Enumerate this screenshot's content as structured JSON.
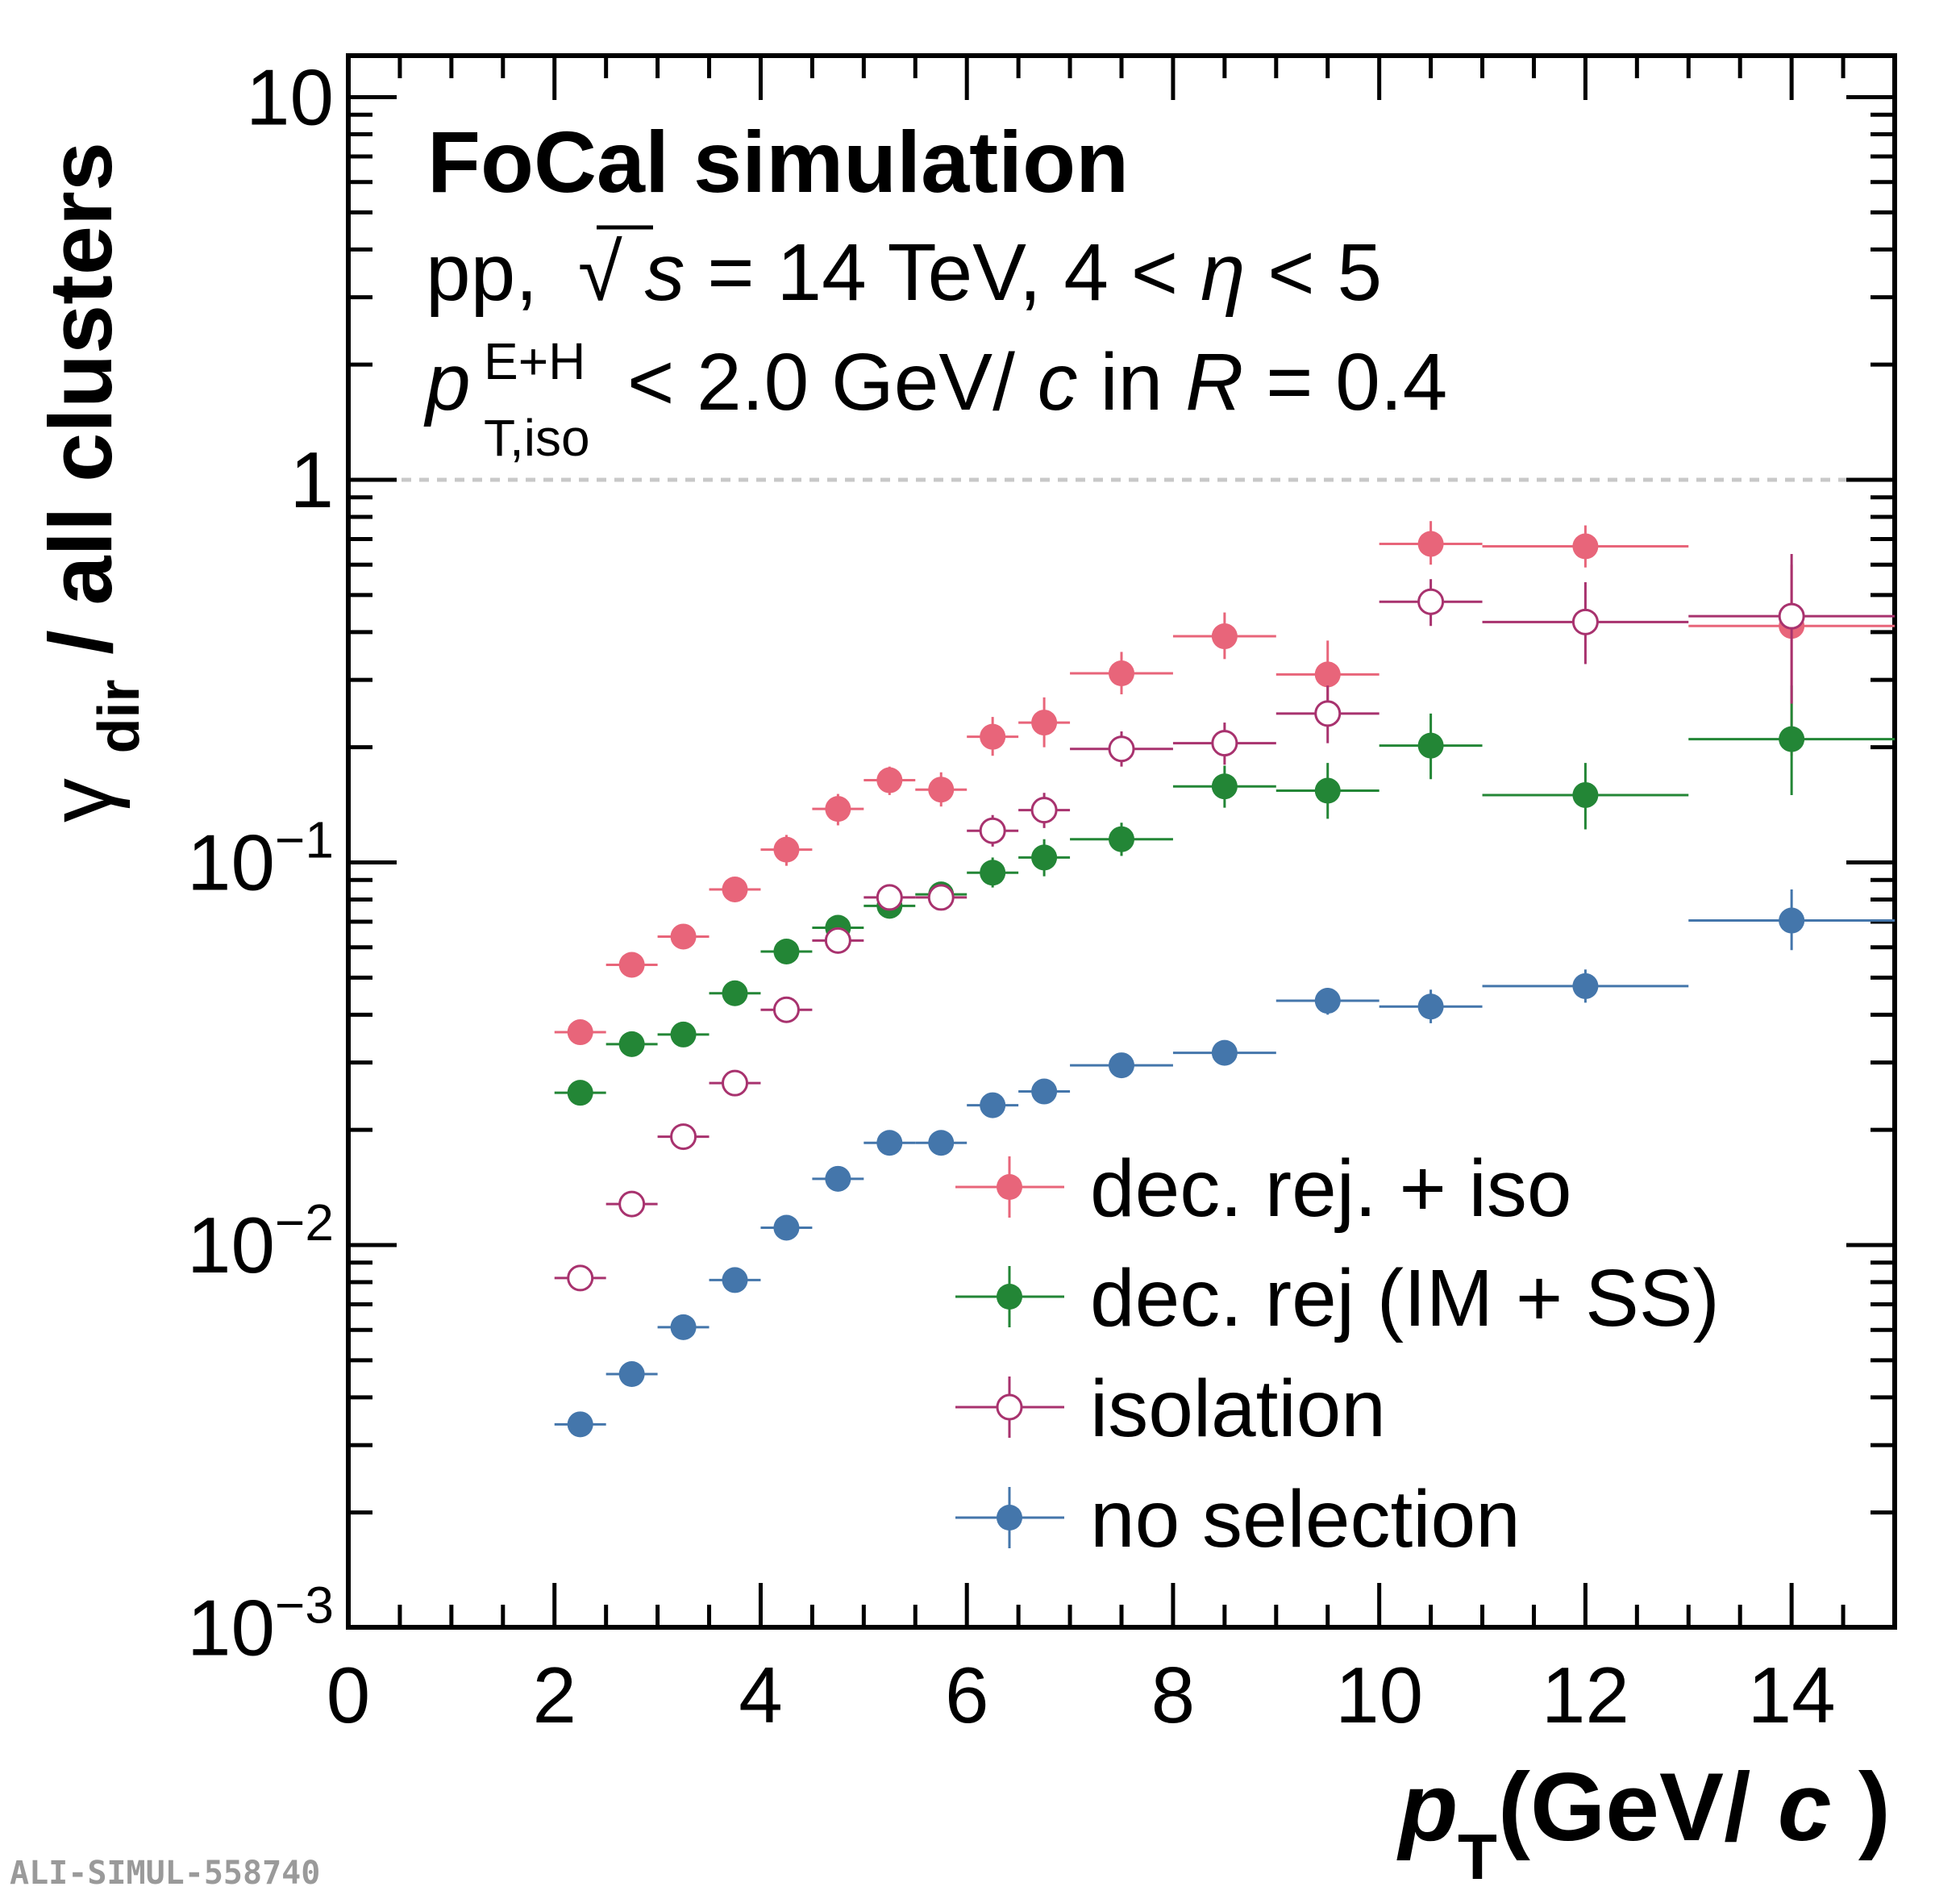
{
  "chart_data": {
    "type": "scatter",
    "title": "FoCal simulation",
    "annotations": {
      "line2_prefix": "pp,",
      "line2_sqrt": "√",
      "line2_s": "s",
      "line2_rest": " = 14 TeV, 4 < ",
      "line2_eta": "η",
      "line2_end": " < 5",
      "line3_p": "p",
      "line3_sup": "E+H",
      "line3_sub": "T,iso",
      "line3_mid": " < 2.0 GeV/",
      "line3_c": "c",
      "line3_in": " in ",
      "line3_R": "R",
      "line3_end": " = 0.4"
    },
    "xlabel": {
      "p": "p",
      "sub": "T",
      "open": " (GeV/",
      "c": "c",
      "close": ")"
    },
    "ylabel": {
      "gamma": "γ",
      "sub": "dir",
      "rest": " / all clusters"
    },
    "xlim": [
      0,
      15
    ],
    "ylim": [
      0.001,
      13
    ],
    "yscale": "log",
    "reference_line": 1,
    "x_ticks": [
      "0",
      "2",
      "4",
      "6",
      "8",
      "10",
      "12",
      "14"
    ],
    "y_ticks": [
      {
        "base": "10",
        "exp": ""
      },
      {
        "base": "1",
        "exp": ""
      },
      {
        "base": "10",
        "exp": "−1"
      },
      {
        "base": "10",
        "exp": "−2"
      },
      {
        "base": "10",
        "exp": "−3"
      }
    ],
    "series": [
      {
        "name": "dec. rej. + iso",
        "color": "#e8657a",
        "marker": "filled",
        "points": [
          {
            "x": 2.25,
            "xerr": 0.25,
            "y": 0.036,
            "ylo": 0.034,
            "yhi": 0.038
          },
          {
            "x": 2.75,
            "xerr": 0.25,
            "y": 0.054,
            "ylo": 0.051,
            "yhi": 0.057
          },
          {
            "x": 3.25,
            "xerr": 0.25,
            "y": 0.064,
            "ylo": 0.06,
            "yhi": 0.068
          },
          {
            "x": 3.75,
            "xerr": 0.25,
            "y": 0.085,
            "ylo": 0.08,
            "yhi": 0.09
          },
          {
            "x": 4.25,
            "xerr": 0.25,
            "y": 0.108,
            "ylo": 0.098,
            "yhi": 0.118
          },
          {
            "x": 4.75,
            "xerr": 0.25,
            "y": 0.138,
            "ylo": 0.125,
            "yhi": 0.151
          },
          {
            "x": 5.25,
            "xerr": 0.25,
            "y": 0.164,
            "ylo": 0.15,
            "yhi": 0.178
          },
          {
            "x": 5.75,
            "xerr": 0.25,
            "y": 0.155,
            "ylo": 0.14,
            "yhi": 0.172
          },
          {
            "x": 6.25,
            "xerr": 0.25,
            "y": 0.213,
            "ylo": 0.19,
            "yhi": 0.24
          },
          {
            "x": 6.75,
            "xerr": 0.25,
            "y": 0.232,
            "ylo": 0.2,
            "yhi": 0.27
          },
          {
            "x": 7.5,
            "xerr": 0.5,
            "y": 0.312,
            "ylo": 0.275,
            "yhi": 0.355
          },
          {
            "x": 8.5,
            "xerr": 0.5,
            "y": 0.39,
            "ylo": 0.34,
            "yhi": 0.45
          },
          {
            "x": 9.5,
            "xerr": 0.5,
            "y": 0.31,
            "ylo": 0.25,
            "yhi": 0.38
          },
          {
            "x": 10.5,
            "xerr": 0.5,
            "y": 0.68,
            "ylo": 0.6,
            "yhi": 0.78
          },
          {
            "x": 12,
            "xerr": 1,
            "y": 0.67,
            "ylo": 0.59,
            "yhi": 0.76
          },
          {
            "x": 14,
            "xerr": 1,
            "y": 0.415,
            "ylo": 0.19,
            "yhi": 0.6
          }
        ]
      },
      {
        "name": "dec. rej (IM + SS)",
        "color": "#238636",
        "marker": "filled",
        "points": [
          {
            "x": 2.25,
            "xerr": 0.25,
            "y": 0.025,
            "ylo": 0.0237,
            "yhi": 0.0263
          },
          {
            "x": 2.75,
            "xerr": 0.25,
            "y": 0.0335,
            "ylo": 0.0318,
            "yhi": 0.0352
          },
          {
            "x": 3.25,
            "xerr": 0.25,
            "y": 0.0355,
            "ylo": 0.0337,
            "yhi": 0.0373
          },
          {
            "x": 3.75,
            "xerr": 0.25,
            "y": 0.0455,
            "ylo": 0.043,
            "yhi": 0.048
          },
          {
            "x": 4.25,
            "xerr": 0.25,
            "y": 0.0585,
            "ylo": 0.055,
            "yhi": 0.062
          },
          {
            "x": 4.75,
            "xerr": 0.25,
            "y": 0.0675,
            "ylo": 0.063,
            "yhi": 0.072
          },
          {
            "x": 5.25,
            "xerr": 0.25,
            "y": 0.077,
            "ylo": 0.072,
            "yhi": 0.082
          },
          {
            "x": 5.75,
            "xerr": 0.25,
            "y": 0.0825,
            "ylo": 0.077,
            "yhi": 0.088
          },
          {
            "x": 6.25,
            "xerr": 0.25,
            "y": 0.094,
            "ylo": 0.086,
            "yhi": 0.103
          },
          {
            "x": 6.75,
            "xerr": 0.25,
            "y": 0.103,
            "ylo": 0.092,
            "yhi": 0.115
          },
          {
            "x": 7.5,
            "xerr": 0.5,
            "y": 0.115,
            "ylo": 0.104,
            "yhi": 0.127
          },
          {
            "x": 8.5,
            "xerr": 0.5,
            "y": 0.158,
            "ylo": 0.139,
            "yhi": 0.179
          },
          {
            "x": 9.5,
            "xerr": 0.5,
            "y": 0.154,
            "ylo": 0.13,
            "yhi": 0.182
          },
          {
            "x": 10.5,
            "xerr": 0.5,
            "y": 0.202,
            "ylo": 0.165,
            "yhi": 0.245
          },
          {
            "x": 12,
            "xerr": 1,
            "y": 0.15,
            "ylo": 0.122,
            "yhi": 0.182
          },
          {
            "x": 14,
            "xerr": 1,
            "y": 0.21,
            "ylo": 0.15,
            "yhi": 0.29
          }
        ]
      },
      {
        "name": "isolation",
        "color": "#a8326e",
        "marker": "open",
        "points": [
          {
            "x": 2.25,
            "xerr": 0.25,
            "y": 0.0082,
            "ylo": 0.0076,
            "yhi": 0.0088
          },
          {
            "x": 2.75,
            "xerr": 0.25,
            "y": 0.0128,
            "ylo": 0.012,
            "yhi": 0.0136
          },
          {
            "x": 3.25,
            "xerr": 0.25,
            "y": 0.0192,
            "ylo": 0.0181,
            "yhi": 0.0203
          },
          {
            "x": 3.75,
            "xerr": 0.25,
            "y": 0.0265,
            "ylo": 0.025,
            "yhi": 0.028
          },
          {
            "x": 4.25,
            "xerr": 0.25,
            "y": 0.0412,
            "ylo": 0.039,
            "yhi": 0.0435
          },
          {
            "x": 4.75,
            "xerr": 0.25,
            "y": 0.0625,
            "ylo": 0.059,
            "yhi": 0.066
          },
          {
            "x": 5.25,
            "xerr": 0.25,
            "y": 0.081,
            "ylo": 0.0765,
            "yhi": 0.0855
          },
          {
            "x": 5.75,
            "xerr": 0.25,
            "y": 0.081,
            "ylo": 0.076,
            "yhi": 0.086
          },
          {
            "x": 6.25,
            "xerr": 0.25,
            "y": 0.121,
            "ylo": 0.11,
            "yhi": 0.133
          },
          {
            "x": 6.75,
            "xerr": 0.25,
            "y": 0.137,
            "ylo": 0.123,
            "yhi": 0.152
          },
          {
            "x": 7.5,
            "xerr": 0.5,
            "y": 0.198,
            "ylo": 0.178,
            "yhi": 0.22
          },
          {
            "x": 8.5,
            "xerr": 0.5,
            "y": 0.205,
            "ylo": 0.18,
            "yhi": 0.232
          },
          {
            "x": 9.5,
            "xerr": 0.5,
            "y": 0.245,
            "ylo": 0.205,
            "yhi": 0.29
          },
          {
            "x": 10.5,
            "xerr": 0.5,
            "y": 0.48,
            "ylo": 0.415,
            "yhi": 0.55
          },
          {
            "x": 12,
            "xerr": 1,
            "y": 0.425,
            "ylo": 0.33,
            "yhi": 0.54
          },
          {
            "x": 14,
            "xerr": 1,
            "y": 0.44,
            "ylo": 0.26,
            "yhi": 0.64
          }
        ]
      },
      {
        "name": "no selection",
        "color": "#4476ab",
        "marker": "filled",
        "points": [
          {
            "x": 2.25,
            "xerr": 0.25,
            "y": 0.0034,
            "ylo": 0.0033,
            "yhi": 0.0035
          },
          {
            "x": 2.75,
            "xerr": 0.25,
            "y": 0.0046,
            "ylo": 0.0045,
            "yhi": 0.0047
          },
          {
            "x": 3.25,
            "xerr": 0.25,
            "y": 0.0061,
            "ylo": 0.0059,
            "yhi": 0.0063
          },
          {
            "x": 3.75,
            "xerr": 0.25,
            "y": 0.0081,
            "ylo": 0.0079,
            "yhi": 0.0083
          },
          {
            "x": 4.25,
            "xerr": 0.25,
            "y": 0.0111,
            "ylo": 0.0108,
            "yhi": 0.0114
          },
          {
            "x": 4.75,
            "xerr": 0.25,
            "y": 0.0149,
            "ylo": 0.0145,
            "yhi": 0.0153
          },
          {
            "x": 5.25,
            "xerr": 0.25,
            "y": 0.0185,
            "ylo": 0.018,
            "yhi": 0.019
          },
          {
            "x": 5.75,
            "xerr": 0.25,
            "y": 0.0185,
            "ylo": 0.018,
            "yhi": 0.019
          },
          {
            "x": 6.25,
            "xerr": 0.25,
            "y": 0.0232,
            "ylo": 0.0224,
            "yhi": 0.024
          },
          {
            "x": 6.75,
            "xerr": 0.25,
            "y": 0.0252,
            "ylo": 0.0243,
            "yhi": 0.0261
          },
          {
            "x": 7.5,
            "xerr": 0.5,
            "y": 0.0295,
            "ylo": 0.0283,
            "yhi": 0.0307
          },
          {
            "x": 8.5,
            "xerr": 0.5,
            "y": 0.0318,
            "ylo": 0.03,
            "yhi": 0.0336
          },
          {
            "x": 9.5,
            "xerr": 0.5,
            "y": 0.0435,
            "ylo": 0.04,
            "yhi": 0.047
          },
          {
            "x": 10.5,
            "xerr": 0.5,
            "y": 0.042,
            "ylo": 0.038,
            "yhi": 0.0465
          },
          {
            "x": 12,
            "xerr": 1,
            "y": 0.0475,
            "ylo": 0.043,
            "yhi": 0.0525
          },
          {
            "x": 14,
            "xerr": 1,
            "y": 0.0705,
            "ylo": 0.059,
            "yhi": 0.085
          }
        ]
      }
    ]
  },
  "footer": {
    "label": "ALI-SIMUL-558740"
  }
}
